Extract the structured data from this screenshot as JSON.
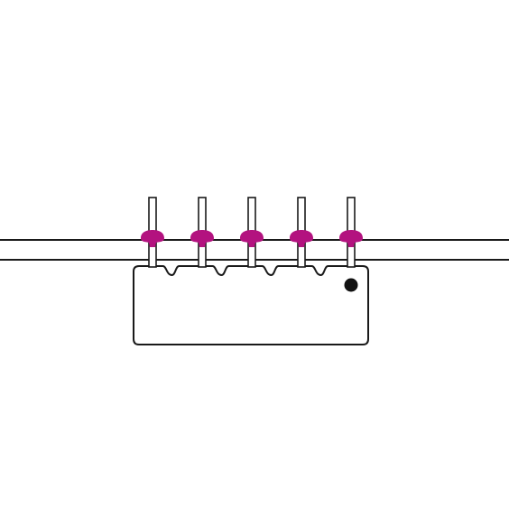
{
  "diagram": {
    "description_type": "component-mounted-on-board",
    "pin_count": 5,
    "colors": {
      "background": "#ffffff",
      "stroke": "#1a1a1a",
      "solder": "#b3127f",
      "orientation_dot": "#111111",
      "pin_fill": "#ffffff"
    },
    "parts": {
      "board": "circuit-board",
      "package": "sip-package",
      "pins": "through-hole-pins",
      "solder_joints": "solder-joints",
      "pin1_marker": "orientation-dot"
    }
  }
}
